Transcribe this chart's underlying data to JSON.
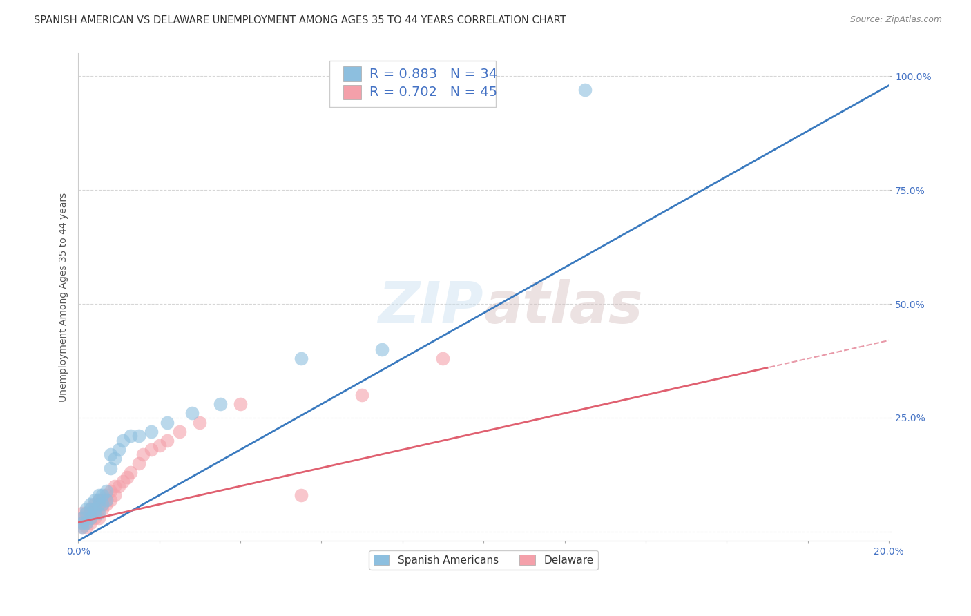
{
  "title": "SPANISH AMERICAN VS DELAWARE UNEMPLOYMENT AMONG AGES 35 TO 44 YEARS CORRELATION CHART",
  "source": "Source: ZipAtlas.com",
  "xlim": [
    0.0,
    0.2
  ],
  "ylim": [
    -0.02,
    1.05
  ],
  "blue_R": 0.883,
  "blue_N": 34,
  "pink_R": 0.702,
  "pink_N": 45,
  "blue_color": "#8dbfdf",
  "pink_color": "#f4a0aa",
  "blue_line_color": "#3a7abf",
  "pink_line_color": "#e06070",
  "dashed_line_color": "#e899a8",
  "watermark": "ZIPatlas",
  "legend_label_blue": "Spanish Americans",
  "legend_label_pink": "Delaware",
  "blue_scatter_x": [
    0.001,
    0.001,
    0.001,
    0.002,
    0.002,
    0.002,
    0.003,
    0.003,
    0.003,
    0.004,
    0.004,
    0.004,
    0.005,
    0.005,
    0.005,
    0.005,
    0.006,
    0.006,
    0.007,
    0.007,
    0.008,
    0.008,
    0.009,
    0.01,
    0.011,
    0.013,
    0.015,
    0.018,
    0.022,
    0.028,
    0.035,
    0.055,
    0.075,
    0.125
  ],
  "blue_scatter_y": [
    0.01,
    0.02,
    0.03,
    0.02,
    0.04,
    0.05,
    0.03,
    0.05,
    0.06,
    0.04,
    0.05,
    0.07,
    0.04,
    0.06,
    0.07,
    0.08,
    0.06,
    0.08,
    0.07,
    0.09,
    0.14,
    0.17,
    0.16,
    0.18,
    0.2,
    0.21,
    0.21,
    0.22,
    0.24,
    0.26,
    0.28,
    0.38,
    0.4,
    0.97
  ],
  "pink_scatter_x": [
    0.001,
    0.001,
    0.001,
    0.001,
    0.002,
    0.002,
    0.002,
    0.002,
    0.003,
    0.003,
    0.003,
    0.003,
    0.004,
    0.004,
    0.004,
    0.004,
    0.005,
    0.005,
    0.005,
    0.005,
    0.006,
    0.006,
    0.006,
    0.007,
    0.007,
    0.007,
    0.008,
    0.008,
    0.009,
    0.009,
    0.01,
    0.011,
    0.012,
    0.013,
    0.015,
    0.016,
    0.018,
    0.02,
    0.022,
    0.025,
    0.03,
    0.04,
    0.055,
    0.07,
    0.09
  ],
  "pink_scatter_y": [
    0.01,
    0.02,
    0.03,
    0.04,
    0.01,
    0.02,
    0.03,
    0.04,
    0.02,
    0.03,
    0.04,
    0.05,
    0.03,
    0.04,
    0.05,
    0.06,
    0.03,
    0.05,
    0.06,
    0.07,
    0.05,
    0.06,
    0.07,
    0.06,
    0.07,
    0.08,
    0.07,
    0.09,
    0.08,
    0.1,
    0.1,
    0.11,
    0.12,
    0.13,
    0.15,
    0.17,
    0.18,
    0.19,
    0.2,
    0.22,
    0.24,
    0.28,
    0.08,
    0.3,
    0.38
  ],
  "grid_color": "#cccccc",
  "background_color": "#ffffff",
  "title_fontsize": 10.5,
  "axis_label_fontsize": 10,
  "tick_fontsize": 10,
  "legend_fontsize": 14
}
